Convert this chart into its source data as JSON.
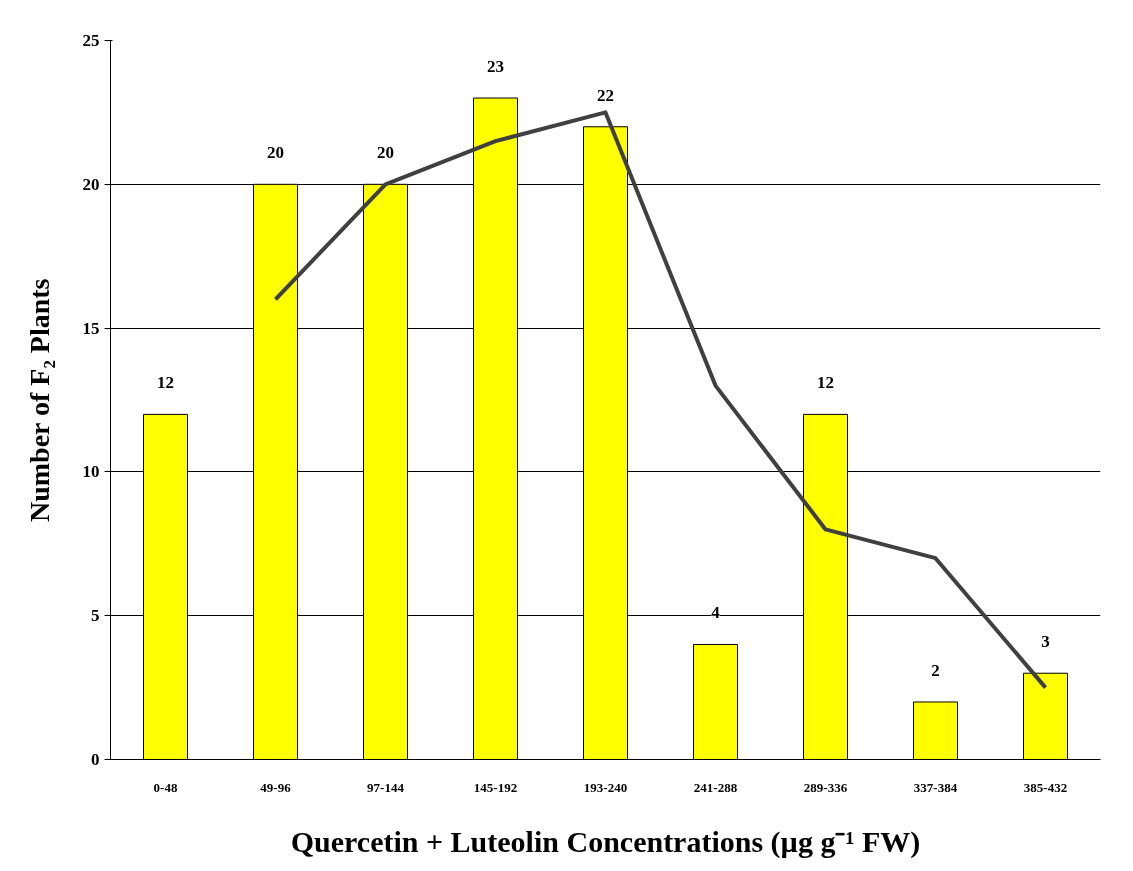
{
  "chart_data": {
    "type": "bar",
    "xlabel": "Quercetin + Luteolin Concentrations (µg g⁻¹ FW)",
    "ylabel": "Number of F₂ Plants",
    "categories": [
      "0-48",
      "49-96",
      "97-144",
      "145-192",
      "193-240",
      "241-288",
      "289-336",
      "337-384",
      "385-432"
    ],
    "series": [
      {
        "color": "#ffff00",
        "values": [
          12,
          20,
          20,
          23,
          22,
          4,
          12,
          2,
          3
        ],
        "value_labels": [
          "12",
          "20",
          "20",
          "23",
          "22",
          "4",
          "12",
          "2",
          "3"
        ]
      },
      {
        "type": "line",
        "color": "#404040",
        "values": [
          null,
          16,
          20,
          21.5,
          22.5,
          13,
          8,
          7,
          2.5
        ]
      }
    ],
    "ylim": [
      0,
      25
    ],
    "yticks": [
      0,
      5,
      10,
      15,
      20,
      25
    ],
    "grid": "y"
  }
}
